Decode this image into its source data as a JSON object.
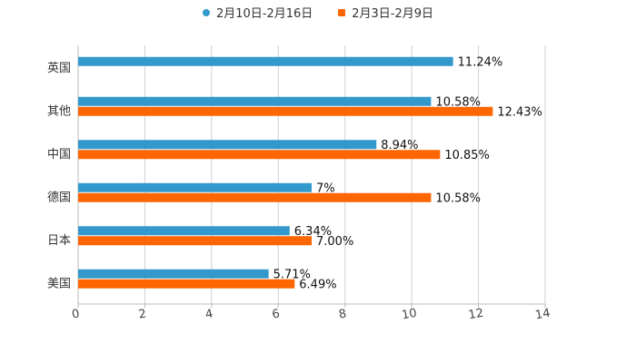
{
  "legend": [
    {
      "label": "2月10日-2月16日",
      "color": "#3399cc",
      "shape": "circle"
    },
    {
      "label": "2月3日-2月9日",
      "color": "#ff6600",
      "shape": "square"
    }
  ],
  "chart_data": {
    "type": "bar",
    "orientation": "horizontal",
    "categories": [
      "英国",
      "其他",
      "中国",
      "德国",
      "日本",
      "美国"
    ],
    "series": [
      {
        "name": "2月10日-2月16日",
        "color": "#3399cc",
        "values": [
          11.24,
          10.58,
          8.94,
          7,
          6.34,
          5.71
        ],
        "labels": [
          "11.24%",
          "10.58%",
          "8.94%",
          "7%",
          "6.34%",
          "5.71%"
        ]
      },
      {
        "name": "2月3日-2月9日",
        "color": "#ff6600",
        "values": [
          null,
          12.43,
          10.85,
          10.58,
          7.0,
          6.49
        ],
        "labels": [
          null,
          "12.43%",
          "10.85%",
          "10.58%",
          "7.00%",
          "6.49%"
        ]
      }
    ],
    "xlim": [
      0,
      14
    ],
    "xticks": [
      0,
      2,
      4,
      6,
      8,
      10,
      12,
      14
    ],
    "xtick_labels": [
      "0",
      "2",
      "4",
      "6",
      "8",
      "10",
      "12",
      "14"
    ],
    "grid": true,
    "legend_position": "top-center",
    "title": "",
    "xlabel": "",
    "ylabel": ""
  }
}
